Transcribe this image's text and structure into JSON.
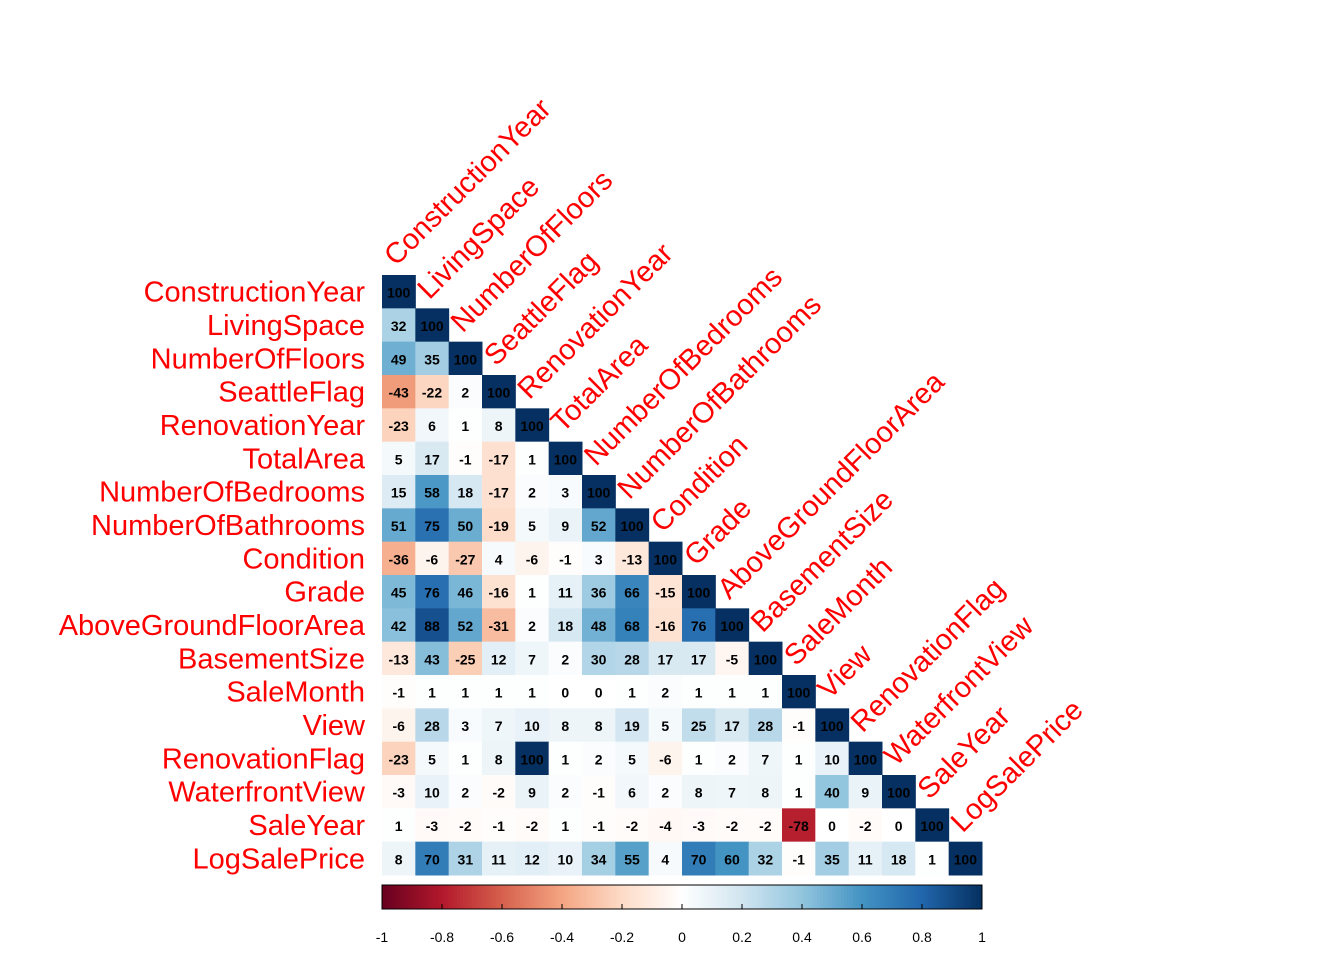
{
  "chart_data": {
    "type": "heatmap",
    "layout": "lower-triangle correlation matrix",
    "variables": [
      "ConstructionYear",
      "LivingSpace",
      "NumberOfFloors",
      "SeattleFlag",
      "RenovationYear",
      "TotalArea",
      "NumberOfBedrooms",
      "NumberOfBathrooms",
      "Condition",
      "Grade",
      "AboveGroundFloorArea",
      "BasementSize",
      "SaleMonth",
      "View",
      "RenovationFlag",
      "WaterfrontView",
      "SaleYear",
      "LogSalePrice"
    ],
    "values_percent": [
      [
        100
      ],
      [
        32,
        100
      ],
      [
        49,
        35,
        100
      ],
      [
        -43,
        -22,
        2,
        100
      ],
      [
        -23,
        6,
        1,
        8,
        100
      ],
      [
        5,
        17,
        -1,
        -17,
        1,
        100
      ],
      [
        15,
        58,
        18,
        -17,
        2,
        3,
        100
      ],
      [
        51,
        75,
        50,
        -19,
        5,
        9,
        52,
        100
      ],
      [
        -36,
        -6,
        -27,
        4,
        -6,
        -1,
        3,
        -13,
        100
      ],
      [
        45,
        76,
        46,
        -16,
        1,
        11,
        36,
        66,
        -15,
        100
      ],
      [
        42,
        88,
        52,
        -31,
        2,
        18,
        48,
        68,
        -16,
        76,
        100
      ],
      [
        -13,
        43,
        -25,
        12,
        7,
        2,
        30,
        28,
        17,
        17,
        -5,
        100
      ],
      [
        -1,
        1,
        1,
        1,
        1,
        0,
        0,
        1,
        2,
        1,
        1,
        1,
        100
      ],
      [
        -6,
        28,
        3,
        7,
        10,
        8,
        8,
        19,
        5,
        25,
        17,
        28,
        -1,
        100
      ],
      [
        -23,
        5,
        1,
        8,
        100,
        1,
        2,
        5,
        -6,
        1,
        2,
        7,
        1,
        10,
        100
      ],
      [
        -3,
        10,
        2,
        -2,
        9,
        2,
        -1,
        6,
        2,
        8,
        7,
        8,
        1,
        40,
        9,
        100
      ],
      [
        1,
        -3,
        -2,
        -1,
        -2,
        1,
        -1,
        -2,
        -4,
        -3,
        -2,
        -2,
        -78,
        0,
        -2,
        0,
        100
      ],
      [
        8,
        70,
        31,
        11,
        12,
        10,
        34,
        55,
        4,
        70,
        60,
        32,
        -1,
        35,
        11,
        18,
        1,
        100
      ]
    ],
    "colorbar": {
      "range": [
        -1,
        1
      ],
      "tick_labels": [
        "-1",
        "-0.8",
        "-0.6",
        "-0.4",
        "-0.2",
        "0",
        "0.2",
        "0.4",
        "0.6",
        "0.8",
        "1"
      ],
      "ticks": [
        -1,
        -0.8,
        -0.6,
        -0.4,
        -0.2,
        0,
        0.2,
        0.4,
        0.6,
        0.8,
        1
      ],
      "placement": "bottom"
    },
    "colormap": [
      "#67001F",
      "#B2182B",
      "#D6604D",
      "#F4A582",
      "#FDDBC7",
      "#FFFFFF",
      "#D1E5F0",
      "#92C5DE",
      "#4393C3",
      "#2166AC",
      "#053061"
    ],
    "label_color": "#FF0000"
  }
}
